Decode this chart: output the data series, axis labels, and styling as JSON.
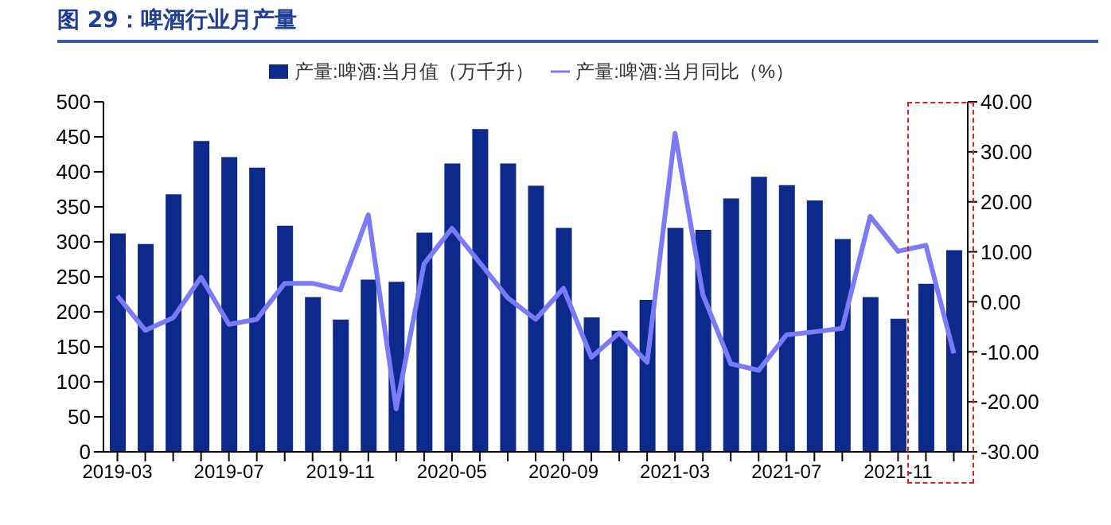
{
  "chart_data": {
    "type": "bar",
    "title": "图 29：啤酒行业月产量",
    "categories": [
      "2019-03",
      null,
      null,
      null,
      "2019-07",
      null,
      null,
      null,
      "2019-11",
      null,
      null,
      null,
      "2020-05",
      null,
      null,
      null,
      "2020-09",
      null,
      null,
      null,
      "2021-03",
      null,
      null,
      null,
      "2021-07",
      null,
      null,
      null,
      "2021-11",
      null,
      null
    ],
    "series": [
      {
        "name": "产量:啤酒:当月值（万千升）",
        "color": "#0c2a8c",
        "values": [
          312,
          297,
          368,
          444,
          421,
          406,
          323,
          221,
          189,
          246,
          243,
          313,
          412,
          461,
          412,
          380,
          320,
          192,
          173,
          217,
          320,
          317,
          362,
          393,
          381,
          359,
          304,
          221,
          190,
          240,
          288
        ]
      },
      {
        "name": "产量:啤酒:当月同比（%）",
        "type": "line",
        "axis": "y2",
        "color": "#7b7bfa",
        "values": [
          1.2,
          -5.7,
          -3.2,
          4.9,
          -4.5,
          -3.5,
          3.7,
          3.7,
          2.4,
          17.4,
          -21.4,
          7.6,
          14.7,
          7.8,
          0.8,
          -3.5,
          2.7,
          -11.1,
          -6.2,
          -12.1,
          33.7,
          1.4,
          -12.4,
          -13.7,
          -6.6,
          -6.0,
          -5.3,
          17.1,
          10.1,
          11.3,
          -10.3
        ]
      }
    ],
    "ylim": [
      0,
      500
    ],
    "yticks": [
      0,
      50,
      100,
      150,
      200,
      250,
      300,
      350,
      400,
      450,
      500
    ],
    "y2lim": [
      -30,
      40
    ],
    "y2ticks": [
      {
        "value": -30,
        "label": "-30.00"
      },
      {
        "value": -20,
        "label": "-20.00"
      },
      {
        "value": -10,
        "label": "-10.00"
      },
      {
        "value": 0,
        "label": "0.00"
      },
      {
        "value": 10,
        "label": "10.00"
      },
      {
        "value": 20,
        "label": "20.00"
      },
      {
        "value": 30,
        "label": "30.00"
      },
      {
        "value": 40,
        "label": "40.00"
      }
    ],
    "legend": "top",
    "marker": "none"
  }
}
